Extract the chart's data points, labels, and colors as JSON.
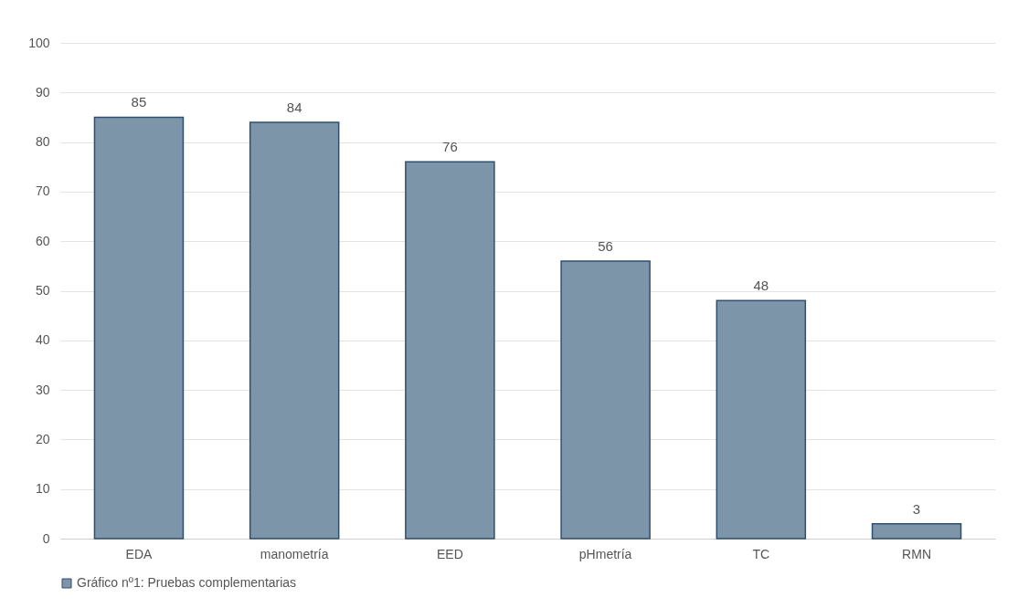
{
  "chart_data": {
    "type": "bar",
    "categories": [
      "EDA",
      "manometría",
      "EED",
      "pHmetría",
      "TC",
      "RMN"
    ],
    "series": [
      {
        "name": "Gráfico nº1: Pruebas complementarias",
        "color": "#7d95a8",
        "values": [
          85,
          84,
          76,
          56,
          48,
          3
        ]
      }
    ],
    "ylim": [
      0,
      100
    ],
    "yticks": [
      0,
      10,
      20,
      30,
      40,
      50,
      60,
      70,
      80,
      90,
      100
    ],
    "grid": "y",
    "legend": "bottom",
    "data_labels": true
  }
}
